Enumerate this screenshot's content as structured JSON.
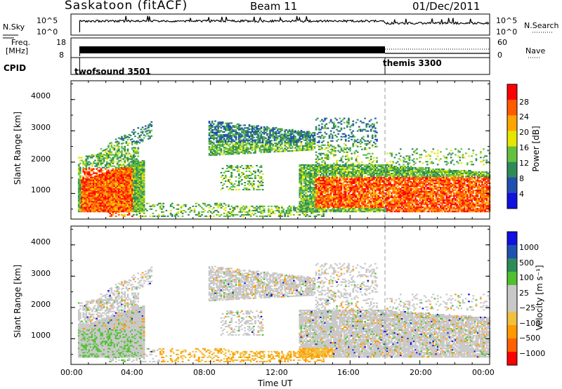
{
  "header": {
    "station": "Saskatoon (fitACF)",
    "beam": "Beam 11",
    "date": "01/Dec/2011"
  },
  "colors": {
    "power": [
      "#1010e0",
      "#2050b0",
      "#2e8b57",
      "#66c040",
      "#e6e600",
      "#ffa500",
      "#ff5a00",
      "#ff0000"
    ],
    "velocity": [
      "#ff0000",
      "#ff6000",
      "#ff9a00",
      "#f0c040",
      "#c8c8c8",
      "#c8c8c8",
      "#50c030",
      "#2e8b57",
      "#2050b0",
      "#1010e0"
    ]
  },
  "chart_data": [
    {
      "type": "line",
      "name": "noise-panel",
      "left_label": "N.Sky",
      "right_label": "N.Search",
      "left_ticks": [
        "10^5",
        "10^0"
      ],
      "right_ticks": [
        "10^5",
        "10^0"
      ]
    },
    {
      "type": "line",
      "name": "frequency-panel",
      "left_label": "Freq.",
      "left_unit": "[MHz]",
      "left_ticks": [
        18,
        8
      ],
      "right_ticks": [
        60,
        0
      ],
      "right_label": "Nave"
    },
    {
      "type": "table",
      "name": "cpid-panel",
      "label": "CPID",
      "segments": [
        {
          "name": "twofsound 3501",
          "start_hour": 0.5
        },
        {
          "name": "themis 3300",
          "start_hour": 18.0
        }
      ]
    },
    {
      "type": "heatmap",
      "name": "power-panel",
      "ylabel": "Slant Range [km]",
      "ylim": [
        180,
        4600
      ],
      "yticks": [
        1000,
        2000,
        3000,
        4000
      ],
      "xlim": [
        0,
        24
      ],
      "colorbar_label": "Power [dB]",
      "colorbar_ticks": [
        "4",
        "8",
        "12",
        "16",
        "20",
        "24",
        "28"
      ],
      "colorbar_range": [
        0,
        32
      ]
    },
    {
      "type": "heatmap",
      "name": "velocity-panel",
      "ylabel": "Slant Range [km]",
      "ylim": [
        180,
        4600
      ],
      "yticks": [
        1000,
        2000,
        3000,
        4000
      ],
      "xlim": [
        0,
        24
      ],
      "xlabel": "Time UT",
      "xticks": [
        "00:00",
        "04:00",
        "08:00",
        "12:00",
        "16:00",
        "20:00",
        "00:00"
      ],
      "colorbar_label": "Velocity [m s⁻¹]",
      "colorbar_ticks": [
        "1000",
        "500",
        "100",
        "25",
        "−25",
        "−100",
        "−500",
        "−1000"
      ]
    }
  ]
}
